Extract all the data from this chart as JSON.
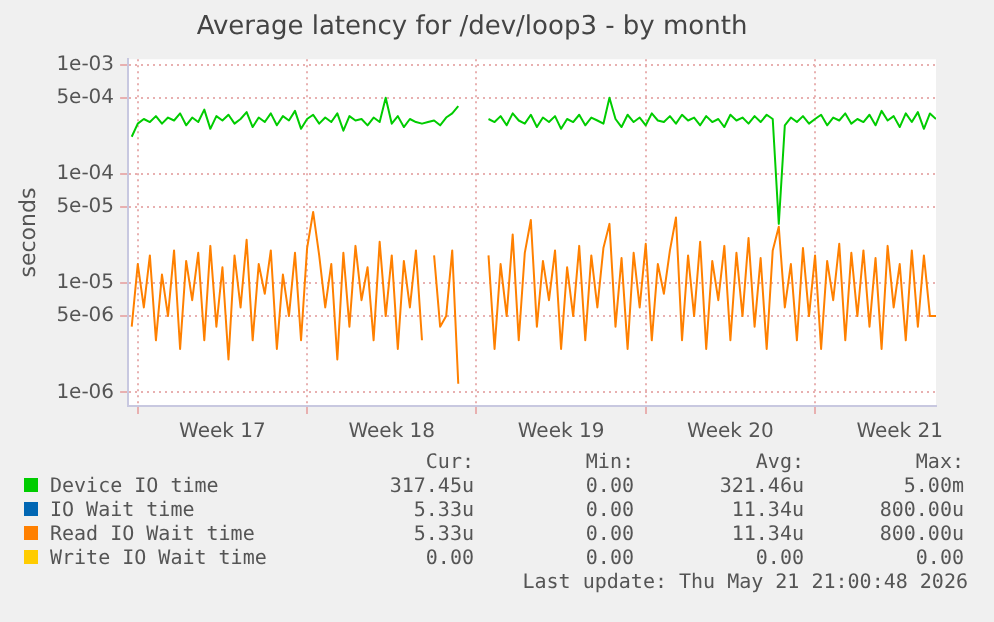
{
  "chart_data": {
    "type": "line",
    "title": "Average latency for /dev/loop3 - by month",
    "ylabel": "seconds",
    "x": [
      "2026-04-19T18:00",
      "2026-04-20T00:00",
      "2026-04-20T06:00",
      "2026-04-20T12:00",
      "2026-04-20T18:00",
      "2026-04-21T00:00",
      "2026-04-21T06:00",
      "2026-04-21T12:00",
      "2026-04-21T18:00",
      "2026-04-22T00:00",
      "2026-04-22T06:00",
      "2026-04-22T12:00",
      "2026-04-22T18:00",
      "2026-04-23T00:00",
      "2026-04-23T06:00",
      "2026-04-23T12:00",
      "2026-04-23T18:00",
      "2026-04-24T00:00",
      "2026-04-24T06:00",
      "2026-04-24T12:00",
      "2026-04-24T18:00",
      "2026-04-25T00:00",
      "2026-04-25T06:00",
      "2026-04-25T12:00",
      "2026-04-25T18:00",
      "2026-04-26T00:00",
      "2026-04-26T06:00",
      "2026-04-26T12:00",
      "2026-04-26T18:00",
      "2026-04-27T00:00",
      "2026-04-27T06:00",
      "2026-04-27T12:00",
      "2026-04-27T18:00",
      "2026-04-28T00:00",
      "2026-04-28T06:00",
      "2026-04-28T12:00",
      "2026-04-28T18:00",
      "2026-04-29T00:00",
      "2026-04-29T06:00",
      "2026-04-29T12:00",
      "2026-04-29T18:00",
      "2026-04-30T00:00",
      "2026-04-30T06:00",
      "2026-04-30T12:00",
      "2026-04-30T18:00",
      "2026-05-01T00:00",
      "2026-05-01T06:00",
      "2026-05-01T12:00",
      "2026-05-01T18:00",
      "2026-05-02T00:00",
      "2026-05-02T06:00",
      "2026-05-02T12:00",
      "2026-05-02T18:00",
      "2026-05-03T00:00",
      "2026-05-03T06:00",
      "2026-05-03T12:00",
      "2026-05-03T18:00",
      "2026-05-04T00:00",
      "2026-05-04T06:00",
      "2026-05-04T12:00",
      "2026-05-04T18:00",
      "2026-05-05T00:00",
      "2026-05-05T06:00",
      "2026-05-05T12:00",
      "2026-05-05T18:00",
      "2026-05-06T00:00",
      "2026-05-06T06:00",
      "2026-05-06T12:00",
      "2026-05-06T18:00",
      "2026-05-07T00:00",
      "2026-05-07T06:00",
      "2026-05-07T12:00",
      "2026-05-07T18:00",
      "2026-05-08T00:00",
      "2026-05-08T06:00",
      "2026-05-08T12:00",
      "2026-05-08T18:00",
      "2026-05-09T00:00",
      "2026-05-09T06:00",
      "2026-05-09T12:00",
      "2026-05-09T18:00",
      "2026-05-10T00:00",
      "2026-05-10T06:00",
      "2026-05-10T12:00",
      "2026-05-10T18:00",
      "2026-05-11T00:00",
      "2026-05-11T06:00",
      "2026-05-11T12:00",
      "2026-05-11T18:00",
      "2026-05-12T00:00",
      "2026-05-12T06:00",
      "2026-05-12T12:00",
      "2026-05-12T18:00",
      "2026-05-13T00:00",
      "2026-05-13T06:00",
      "2026-05-13T12:00",
      "2026-05-13T18:00",
      "2026-05-14T00:00",
      "2026-05-14T06:00",
      "2026-05-14T12:00",
      "2026-05-14T18:00",
      "2026-05-15T00:00",
      "2026-05-15T06:00",
      "2026-05-15T12:00",
      "2026-05-15T18:00",
      "2026-05-16T00:00",
      "2026-05-16T06:00",
      "2026-05-16T12:00",
      "2026-05-16T18:00",
      "2026-05-17T00:00",
      "2026-05-17T06:00",
      "2026-05-17T12:00",
      "2026-05-17T18:00",
      "2026-05-18T00:00",
      "2026-05-18T06:00",
      "2026-05-18T12:00",
      "2026-05-18T18:00",
      "2026-05-19T00:00",
      "2026-05-19T06:00",
      "2026-05-19T12:00",
      "2026-05-19T18:00",
      "2026-05-20T00:00",
      "2026-05-20T06:00",
      "2026-05-20T12:00",
      "2026-05-20T18:00",
      "2026-05-21T00:00",
      "2026-05-21T06:00",
      "2026-05-21T12:00",
      "2026-05-21T18:00",
      "2026-05-22T00:00",
      "2026-05-22T06:00",
      "2026-05-22T12:00",
      "2026-05-22T18:00",
      "2026-05-23T00:00"
    ],
    "series": [
      {
        "name": "Device IO time",
        "color": "#00cc00",
        "values": [
          0.00022,
          0.00029,
          0.00032,
          0.0003,
          0.00034,
          0.00029,
          0.00033,
          0.00031,
          0.00036,
          0.00028,
          0.00033,
          0.0003,
          0.00039,
          0.00026,
          0.00034,
          0.00031,
          0.00035,
          0.00029,
          0.00032,
          0.00037,
          0.00027,
          0.00033,
          0.0003,
          0.00036,
          0.00028,
          0.00034,
          0.00031,
          0.00038,
          0.00026,
          0.00032,
          0.00035,
          0.00029,
          0.00033,
          0.0003,
          0.00036,
          0.00025,
          0.00034,
          0.00031,
          0.00032,
          0.00028,
          0.00033,
          0.0003,
          0.0005,
          0.00029,
          0.00034,
          0.00027,
          0.00032,
          0.0003,
          0.00029,
          0.0003,
          0.00031,
          0.00028,
          0.00033,
          0.00036,
          0.00042,
          null,
          null,
          null,
          null,
          0.00032,
          0.0003,
          0.00034,
          0.00028,
          0.00036,
          0.00031,
          0.00029,
          0.00035,
          0.00027,
          0.00033,
          0.0003,
          0.00034,
          0.00026,
          0.00032,
          0.0003,
          0.00035,
          0.00028,
          0.00033,
          0.00031,
          0.00029,
          0.0005,
          0.00032,
          0.00027,
          0.00035,
          0.0003,
          0.00033,
          0.00028,
          0.00036,
          0.00031,
          0.0003,
          0.00034,
          0.00029,
          0.00035,
          0.00031,
          0.00033,
          0.00028,
          0.00034,
          0.0003,
          0.00032,
          0.00027,
          0.00035,
          0.00031,
          0.00033,
          0.00029,
          0.00034,
          0.0003,
          0.00035,
          0.00032,
          3.5e-05,
          0.00028,
          0.00033,
          0.0003,
          0.00034,
          0.00029,
          0.00032,
          0.00035,
          0.00028,
          0.00033,
          0.00031,
          0.00036,
          0.00029,
          0.00032,
          0.0003,
          0.00035,
          0.00028,
          0.00038,
          0.00031,
          0.00034,
          0.00027,
          0.00036,
          0.0003,
          0.00037,
          0.00026,
          0.00036,
          0.00032
        ]
      },
      {
        "name": "IO Wait time",
        "color": "#0066b3",
        "values": [
          null,
          null,
          null,
          null,
          null,
          null,
          null,
          null,
          null,
          null,
          null,
          null,
          null,
          null,
          null,
          null,
          null,
          null,
          null,
          null,
          null,
          null,
          null,
          null,
          null,
          null,
          null,
          null,
          null,
          null,
          null,
          null,
          null,
          null,
          null,
          null,
          null,
          null,
          null,
          null,
          null,
          null,
          null,
          null,
          null,
          null,
          null,
          null,
          null,
          null,
          null,
          null,
          null,
          null,
          null,
          null,
          null,
          null,
          null,
          null,
          null,
          null,
          null,
          null,
          null,
          null,
          null,
          null,
          null,
          null,
          null,
          null,
          null,
          null,
          null,
          null,
          null,
          null,
          null,
          null,
          null,
          null,
          null,
          null,
          null,
          null,
          null,
          null,
          null,
          null,
          null,
          null,
          null,
          null,
          null,
          null,
          null,
          null,
          null,
          null,
          null,
          null,
          null,
          null,
          null,
          null,
          null,
          null,
          null,
          null,
          null,
          null,
          null,
          null,
          null,
          null,
          null,
          null,
          null,
          null,
          null,
          null,
          null,
          null,
          null,
          null,
          null,
          null,
          null,
          null,
          null,
          null,
          null,
          null
        ]
      },
      {
        "name": "Read IO Wait time",
        "color": "#ff8000",
        "values": [
          4e-06,
          1.5e-05,
          6e-06,
          1.8e-05,
          3e-06,
          1.2e-05,
          5e-06,
          2e-05,
          2.5e-06,
          1.6e-05,
          7e-06,
          1.9e-05,
          3e-06,
          2.2e-05,
          4e-06,
          1.4e-05,
          2e-06,
          1.8e-05,
          6e-06,
          2.5e-05,
          3e-06,
          1.5e-05,
          8e-06,
          2e-05,
          2.5e-06,
          1.2e-05,
          5e-06,
          1.9e-05,
          3e-06,
          2.1e-05,
          4.5e-05,
          1.8e-05,
          6e-06,
          1.5e-05,
          2e-06,
          1.9e-05,
          4e-06,
          2.2e-05,
          7e-06,
          1.4e-05,
          3e-06,
          2.4e-05,
          5e-06,
          1.8e-05,
          2.5e-06,
          1.6e-05,
          6e-06,
          2e-05,
          3e-06,
          null,
          1.8e-05,
          4e-06,
          5e-06,
          2e-05,
          1.2e-06,
          null,
          null,
          null,
          null,
          1.8e-05,
          2.5e-06,
          1.5e-05,
          5e-06,
          2.8e-05,
          3e-06,
          1.9e-05,
          3.8e-05,
          4e-06,
          1.6e-05,
          7e-06,
          2e-05,
          2.5e-06,
          1.4e-05,
          5e-06,
          2.2e-05,
          3e-06,
          1.8e-05,
          6e-06,
          2.1e-05,
          3.5e-05,
          4e-06,
          1.7e-05,
          2.5e-06,
          1.9e-05,
          6e-06,
          2.3e-05,
          3e-06,
          1.5e-05,
          8e-06,
          2e-05,
          4e-05,
          3e-06,
          1.8e-05,
          5e-06,
          2.4e-05,
          2.5e-06,
          1.6e-05,
          7e-06,
          2.2e-05,
          3e-06,
          1.9e-05,
          5e-06,
          2.6e-05,
          4e-06,
          1.7e-05,
          2.5e-06,
          2e-05,
          3.3e-05,
          6e-06,
          1.5e-05,
          3e-06,
          2.1e-05,
          5e-06,
          1.8e-05,
          2.5e-06,
          1.6e-05,
          7e-06,
          2.3e-05,
          3e-06,
          1.9e-05,
          5e-06,
          2e-05,
          4e-06,
          1.7e-05,
          2.5e-06,
          2.2e-05,
          6e-06,
          1.5e-05,
          3e-06,
          2e-05,
          4e-06,
          1.8e-05,
          5e-06,
          5e-06
        ]
      },
      {
        "name": "Write IO Wait time",
        "color": "#ffcc00",
        "values": [
          null,
          null,
          null,
          null,
          null,
          null,
          null,
          null,
          null,
          null,
          null,
          null,
          null,
          null,
          null,
          null,
          null,
          null,
          null,
          null,
          null,
          null,
          null,
          null,
          null,
          null,
          null,
          null,
          null,
          null,
          null,
          null,
          null,
          null,
          null,
          null,
          null,
          null,
          null,
          null,
          null,
          null,
          null,
          null,
          null,
          null,
          null,
          null,
          null,
          null,
          null,
          null,
          null,
          null,
          null,
          null,
          null,
          null,
          null,
          null,
          null,
          null,
          null,
          null,
          null,
          null,
          null,
          null,
          null,
          null,
          null,
          null,
          null,
          null,
          null,
          null,
          null,
          null,
          null,
          null,
          null,
          null,
          null,
          null,
          null,
          null,
          null,
          null,
          null,
          null,
          null,
          null,
          null,
          null,
          null,
          null,
          null,
          null,
          null,
          null,
          null,
          null,
          null,
          null,
          null,
          null,
          null,
          null,
          null,
          null,
          null,
          null,
          null,
          null,
          null,
          null,
          null,
          null,
          null,
          null,
          null,
          null,
          null,
          null,
          null,
          null,
          null,
          null,
          null,
          null,
          null,
          null,
          null,
          null
        ]
      }
    ],
    "xlim": [
      "2026-04-19T14:24",
      "2026-05-23T00:00"
    ],
    "xticks": [
      {
        "value": "2026-04-20",
        "label": null
      },
      {
        "value": "2026-04-23T12:00",
        "label": "Week 17"
      },
      {
        "value": "2026-04-27",
        "label": null
      },
      {
        "value": "2026-04-30T12:00",
        "label": "Week 18"
      },
      {
        "value": "2026-05-04",
        "label": null
      },
      {
        "value": "2026-05-07T12:00",
        "label": "Week 19"
      },
      {
        "value": "2026-05-11",
        "label": null
      },
      {
        "value": "2026-05-14T12:00",
        "label": "Week 20"
      },
      {
        "value": "2026-05-18",
        "label": null
      },
      {
        "value": "2026-05-21T12:00",
        "label": "Week 21"
      }
    ],
    "ylim": [
      7.5e-07,
      0.00113
    ],
    "yticks": [
      {
        "value": 1e-06,
        "label": "1e-06"
      },
      {
        "value": 5e-06,
        "label": "5e-06"
      },
      {
        "value": 1e-05,
        "label": "1e-05"
      },
      {
        "value": 5e-05,
        "label": "5e-05"
      },
      {
        "value": 0.0001,
        "label": "1e-04"
      },
      {
        "value": 0.0005,
        "label": "5e-04"
      },
      {
        "value": 0.001,
        "label": "1e-03"
      }
    ],
    "log": "y",
    "grid": true,
    "legend": "bottom",
    "marker": "none",
    "line_style": "solid",
    "annotations": [
      "Cur:",
      "Min:",
      "Avg:",
      "Max:",
      "317.45u",
      "0.00",
      "321.46u",
      "5.00m",
      "5.33u",
      "0.00",
      "11.34u",
      "800.00u",
      "5.33u",
      "0.00",
      "11.34u",
      "800.00u",
      "0.00",
      "0.00",
      "0.00",
      "0.00",
      "Last update: Thu May 21 21:00:48 2026"
    ]
  }
}
